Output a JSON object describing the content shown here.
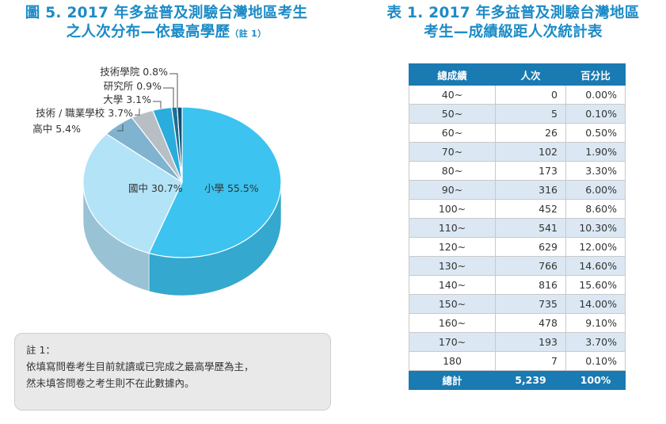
{
  "figure": {
    "title_line1": "圖 5. 2017 年多益普及測驗台灣地區考生",
    "title_line2": "之人次分布—依最高學歷",
    "title_note": "（註 1）"
  },
  "chart_data": {
    "type": "pie",
    "title": "圖 5. 2017 年多益普及測驗台灣地區考生之人次分布—依最高學歷",
    "labels": [
      "小學",
      "國中",
      "高中",
      "技術 / 職業學校",
      "大學",
      "研究所",
      "技術學院"
    ],
    "values": [
      55.5,
      30.7,
      5.4,
      3.7,
      3.1,
      0.9,
      0.8
    ],
    "display": [
      "小學 55.5%",
      "國中 30.7%",
      "高中 5.4%",
      "技術 / 職業學校 3.7%",
      "大學 3.1%",
      "研究所 0.9%",
      "技術學院 0.8%"
    ],
    "colors": [
      "#3cc3f0",
      "#b2e3f7",
      "#7fb3cf",
      "#b8bfc4",
      "#2aacdc",
      "#1e6e96",
      "#0e4f70"
    ],
    "style": "3d"
  },
  "note": {
    "title": "註 1：",
    "line1": "依填寫問卷考生目前就讀或已完成之最高學歷為主，",
    "line2": "然未填答問卷之考生則不在此數據內。"
  },
  "table": {
    "title_line1": "表 1. 2017 年多益普及測驗台灣地區",
    "title_line2": "考生—成績級距人次統計表",
    "headers": [
      "總成績",
      "人次",
      "百分比"
    ],
    "rows": [
      [
        "40~",
        "0",
        "0.00%"
      ],
      [
        "50~",
        "5",
        "0.10%"
      ],
      [
        "60~",
        "26",
        "0.50%"
      ],
      [
        "70~",
        "102",
        "1.90%"
      ],
      [
        "80~",
        "173",
        "3.30%"
      ],
      [
        "90~",
        "316",
        "6.00%"
      ],
      [
        "100~",
        "452",
        "8.60%"
      ],
      [
        "110~",
        "541",
        "10.30%"
      ],
      [
        "120~",
        "629",
        "12.00%"
      ],
      [
        "130~",
        "766",
        "14.60%"
      ],
      [
        "140~",
        "816",
        "15.60%"
      ],
      [
        "150~",
        "735",
        "14.00%"
      ],
      [
        "160~",
        "478",
        "9.10%"
      ],
      [
        "170~",
        "193",
        "3.70%"
      ],
      [
        "180",
        "7",
        "0.10%"
      ]
    ],
    "total": [
      "總計",
      "5,239",
      "100%"
    ]
  }
}
